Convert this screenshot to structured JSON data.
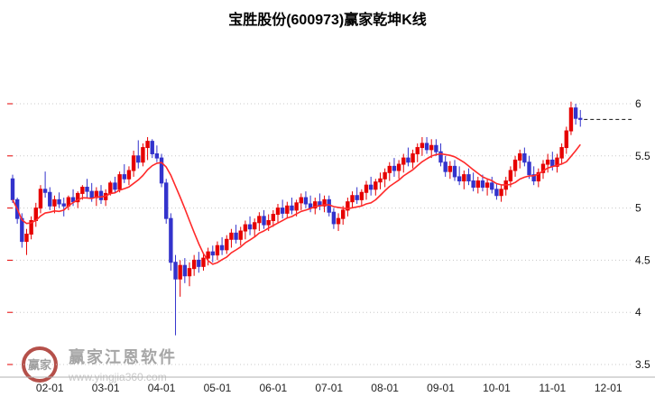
{
  "title": "宝胜股份(600973)赢家乾坤K线",
  "watermark": {
    "brand": "赢家江恩软件",
    "url": "www.yingjia360.com",
    "logo_text": "赢家"
  },
  "colors": {
    "up": "#e60000",
    "down": "#3333cc",
    "ma": "#ff2a2a",
    "grid": "#c8c8c8",
    "dashed": "#111111",
    "axis": "#b0b0b0",
    "tick_red": "#e60000",
    "label": "#111111"
  },
  "chart_data": {
    "type": "candlestick",
    "title": "宝胜股份(600973)赢家乾坤K线",
    "ohlc_format": [
      "open",
      "high",
      "low",
      "close"
    ],
    "y_axis": {
      "min": 3.5,
      "max": 6.0,
      "side": "right",
      "tick_values": [
        6,
        5.5,
        5,
        4.5,
        4,
        3.5
      ],
      "tick_labels": [
        "6",
        "5.5",
        "5",
        "4.5",
        "4",
        "3.5"
      ]
    },
    "x_ticks": {
      "labels": [
        "02-01",
        "03-01",
        "04-01",
        "05-01",
        "06-01",
        "07-01",
        "08-01",
        "09-01",
        "10-01",
        "11-01",
        "12-01"
      ],
      "first_index": 8,
      "step": 12,
      "axis_index_max": 133
    },
    "ma_window": 10,
    "last_price": 5.85,
    "legend_position": "none",
    "grid": "dotted-horizontal",
    "candles": [
      [
        5.28,
        5.32,
        5.05,
        5.08
      ],
      [
        5.08,
        5.1,
        4.85,
        4.9
      ],
      [
        4.9,
        4.95,
        4.62,
        4.68
      ],
      [
        4.68,
        4.8,
        4.55,
        4.75
      ],
      [
        4.75,
        4.92,
        4.7,
        4.88
      ],
      [
        4.88,
        5.05,
        4.82,
        5.0
      ],
      [
        5.0,
        5.22,
        4.95,
        5.18
      ],
      [
        5.18,
        5.35,
        5.1,
        5.15
      ],
      [
        5.15,
        5.2,
        4.98,
        5.02
      ],
      [
        5.02,
        5.12,
        4.95,
        5.08
      ],
      [
        5.08,
        5.15,
        5.0,
        5.04
      ],
      [
        5.04,
        5.1,
        4.92,
        5.02
      ],
      [
        5.02,
        5.12,
        4.98,
        5.1
      ],
      [
        5.1,
        5.18,
        5.02,
        5.06
      ],
      [
        5.06,
        5.16,
        5.0,
        5.14
      ],
      [
        5.14,
        5.22,
        5.08,
        5.2
      ],
      [
        5.2,
        5.28,
        5.1,
        5.16
      ],
      [
        5.16,
        5.24,
        5.06,
        5.1
      ],
      [
        5.1,
        5.2,
        5.02,
        5.16
      ],
      [
        5.16,
        5.22,
        5.04,
        5.08
      ],
      [
        5.08,
        5.18,
        5.02,
        5.14
      ],
      [
        5.14,
        5.26,
        5.12,
        5.24
      ],
      [
        5.24,
        5.3,
        5.14,
        5.18
      ],
      [
        5.18,
        5.35,
        5.15,
        5.32
      ],
      [
        5.32,
        5.42,
        5.24,
        5.28
      ],
      [
        5.28,
        5.4,
        5.22,
        5.36
      ],
      [
        5.36,
        5.55,
        5.3,
        5.5
      ],
      [
        5.5,
        5.65,
        5.38,
        5.44
      ],
      [
        5.44,
        5.62,
        5.4,
        5.58
      ],
      [
        5.58,
        5.68,
        5.46,
        5.64
      ],
      [
        5.64,
        5.66,
        5.48,
        5.52
      ],
      [
        5.52,
        5.6,
        5.44,
        5.48
      ],
      [
        5.48,
        5.52,
        5.2,
        5.24
      ],
      [
        5.24,
        5.28,
        4.85,
        4.9
      ],
      [
        4.9,
        4.95,
        4.4,
        4.48
      ],
      [
        4.48,
        4.55,
        3.78,
        4.32
      ],
      [
        4.32,
        4.5,
        4.15,
        4.45
      ],
      [
        4.45,
        4.52,
        4.28,
        4.35
      ],
      [
        4.35,
        4.48,
        4.25,
        4.42
      ],
      [
        4.42,
        4.55,
        4.35,
        4.5
      ],
      [
        4.5,
        4.58,
        4.38,
        4.44
      ],
      [
        4.44,
        4.56,
        4.4,
        4.52
      ],
      [
        4.52,
        4.62,
        4.45,
        4.58
      ],
      [
        4.58,
        4.64,
        4.48,
        4.55
      ],
      [
        4.55,
        4.68,
        4.5,
        4.64
      ],
      [
        4.64,
        4.72,
        4.55,
        4.6
      ],
      [
        4.6,
        4.74,
        4.56,
        4.7
      ],
      [
        4.7,
        4.8,
        4.62,
        4.76
      ],
      [
        4.76,
        4.84,
        4.66,
        4.7
      ],
      [
        4.7,
        4.82,
        4.64,
        4.78
      ],
      [
        4.78,
        4.88,
        4.7,
        4.84
      ],
      [
        4.84,
        4.92,
        4.74,
        4.8
      ],
      [
        4.8,
        4.9,
        4.72,
        4.86
      ],
      [
        4.86,
        4.96,
        4.78,
        4.92
      ],
      [
        4.92,
        4.98,
        4.8,
        4.84
      ],
      [
        4.84,
        4.94,
        4.78,
        4.88
      ],
      [
        4.88,
        4.98,
        4.82,
        4.94
      ],
      [
        4.94,
        5.04,
        4.86,
        5.0
      ],
      [
        5.0,
        5.08,
        4.9,
        4.95
      ],
      [
        4.95,
        5.06,
        4.9,
        5.02
      ],
      [
        5.02,
        5.1,
        4.94,
        4.98
      ],
      [
        4.98,
        5.08,
        4.92,
        5.05
      ],
      [
        5.05,
        5.14,
        4.98,
        5.1
      ],
      [
        5.1,
        5.16,
        5.0,
        5.04
      ],
      [
        5.04,
        5.12,
        4.96,
        5.0
      ],
      [
        5.0,
        5.1,
        4.94,
        5.06
      ],
      [
        5.06,
        5.14,
        4.98,
        5.02
      ],
      [
        5.02,
        5.12,
        4.96,
        5.08
      ],
      [
        5.08,
        5.12,
        4.92,
        4.96
      ],
      [
        4.96,
        5.0,
        4.8,
        4.85
      ],
      [
        4.85,
        4.95,
        4.78,
        4.9
      ],
      [
        4.9,
        5.02,
        4.84,
        4.98
      ],
      [
        4.98,
        5.1,
        4.92,
        5.06
      ],
      [
        5.06,
        5.16,
        5.0,
        5.12
      ],
      [
        5.12,
        5.2,
        5.04,
        5.08
      ],
      [
        5.08,
        5.18,
        5.02,
        5.15
      ],
      [
        5.15,
        5.26,
        5.08,
        5.22
      ],
      [
        5.22,
        5.3,
        5.12,
        5.18
      ],
      [
        5.18,
        5.28,
        5.12,
        5.25
      ],
      [
        5.25,
        5.34,
        5.18,
        5.28
      ],
      [
        5.28,
        5.38,
        5.2,
        5.34
      ],
      [
        5.34,
        5.44,
        5.26,
        5.4
      ],
      [
        5.4,
        5.48,
        5.3,
        5.36
      ],
      [
        5.36,
        5.46,
        5.28,
        5.42
      ],
      [
        5.42,
        5.52,
        5.34,
        5.48
      ],
      [
        5.48,
        5.58,
        5.4,
        5.44
      ],
      [
        5.44,
        5.56,
        5.38,
        5.52
      ],
      [
        5.52,
        5.62,
        5.44,
        5.58
      ],
      [
        5.58,
        5.68,
        5.5,
        5.62
      ],
      [
        5.62,
        5.68,
        5.52,
        5.56
      ],
      [
        5.56,
        5.66,
        5.48,
        5.6
      ],
      [
        5.6,
        5.66,
        5.5,
        5.54
      ],
      [
        5.54,
        5.62,
        5.4,
        5.44
      ],
      [
        5.44,
        5.5,
        5.3,
        5.35
      ],
      [
        5.35,
        5.45,
        5.28,
        5.4
      ],
      [
        5.4,
        5.46,
        5.26,
        5.3
      ],
      [
        5.3,
        5.4,
        5.22,
        5.26
      ],
      [
        5.26,
        5.36,
        5.18,
        5.32
      ],
      [
        5.32,
        5.38,
        5.22,
        5.26
      ],
      [
        5.26,
        5.34,
        5.16,
        5.2
      ],
      [
        5.2,
        5.3,
        5.14,
        5.26
      ],
      [
        5.26,
        5.32,
        5.16,
        5.2
      ],
      [
        5.2,
        5.28,
        5.12,
        5.24
      ],
      [
        5.24,
        5.3,
        5.14,
        5.18
      ],
      [
        5.18,
        5.24,
        5.08,
        5.12
      ],
      [
        5.12,
        5.22,
        5.06,
        5.18
      ],
      [
        5.18,
        5.3,
        5.12,
        5.26
      ],
      [
        5.26,
        5.4,
        5.2,
        5.36
      ],
      [
        5.36,
        5.5,
        5.3,
        5.46
      ],
      [
        5.46,
        5.56,
        5.38,
        5.52
      ],
      [
        5.52,
        5.58,
        5.4,
        5.44
      ],
      [
        5.44,
        5.5,
        5.28,
        5.32
      ],
      [
        5.32,
        5.4,
        5.22,
        5.26
      ],
      [
        5.26,
        5.38,
        5.2,
        5.34
      ],
      [
        5.34,
        5.46,
        5.28,
        5.42
      ],
      [
        5.42,
        5.52,
        5.34,
        5.46
      ],
      [
        5.46,
        5.54,
        5.36,
        5.4
      ],
      [
        5.4,
        5.52,
        5.34,
        5.48
      ],
      [
        5.48,
        5.62,
        5.42,
        5.58
      ],
      [
        5.58,
        5.78,
        5.52,
        5.74
      ],
      [
        5.74,
        6.02,
        5.7,
        5.96
      ],
      [
        5.96,
        6.0,
        5.8,
        5.86
      ],
      [
        5.86,
        5.94,
        5.78,
        5.85
      ]
    ]
  }
}
